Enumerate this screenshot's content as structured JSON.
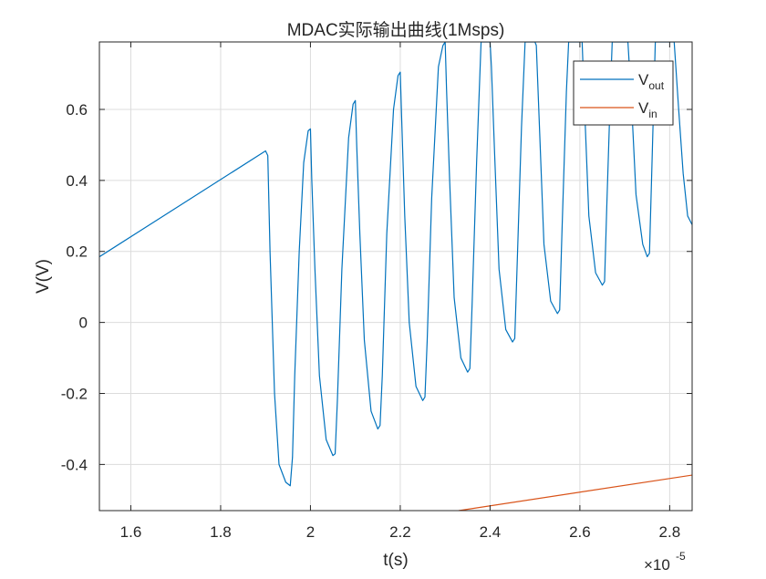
{
  "chart_data": {
    "type": "line",
    "title": "MDAC实际输出曲线(1Msps)",
    "xlabel": "t(s)",
    "ylabel": "V(V)",
    "x_exponent_label": "×10",
    "x_exponent_power": "-5",
    "xlim": [
      1.53,
      2.85
    ],
    "ylim": [
      -0.53,
      0.79
    ],
    "x_ticks": [
      1.6,
      1.8,
      2.0,
      2.2,
      2.4,
      2.6,
      2.8
    ],
    "x_tick_labels": [
      "1.6",
      "1.8",
      "2",
      "2.2",
      "2.4",
      "2.6",
      "2.8"
    ],
    "y_ticks": [
      -0.4,
      -0.2,
      0,
      0.2,
      0.4,
      0.6
    ],
    "y_tick_labels": [
      "-0.4",
      "-0.2",
      "0",
      "0.2",
      "0.4",
      "0.6"
    ],
    "grid": true,
    "legend_position": "top-right",
    "series": [
      {
        "name": "V_out",
        "legend_main": "V",
        "legend_sub": "out",
        "color": "#0072BD",
        "points": [
          [
            1.53,
            0.185
          ],
          [
            1.9,
            0.483
          ],
          [
            1.905,
            0.47
          ],
          [
            1.91,
            0.2
          ],
          [
            1.92,
            -0.2
          ],
          [
            1.93,
            -0.4
          ],
          [
            1.945,
            -0.45
          ],
          [
            1.955,
            -0.46
          ],
          [
            1.96,
            -0.38
          ],
          [
            1.965,
            -0.15
          ],
          [
            1.975,
            0.2
          ],
          [
            1.985,
            0.45
          ],
          [
            1.995,
            0.54
          ],
          [
            2.0,
            0.545
          ],
          [
            2.003,
            0.4
          ],
          [
            2.01,
            0.15
          ],
          [
            2.02,
            -0.15
          ],
          [
            2.035,
            -0.33
          ],
          [
            2.05,
            -0.375
          ],
          [
            2.055,
            -0.37
          ],
          [
            2.06,
            -0.22
          ],
          [
            2.07,
            0.15
          ],
          [
            2.085,
            0.52
          ],
          [
            2.095,
            0.615
          ],
          [
            2.1,
            0.625
          ],
          [
            2.103,
            0.5
          ],
          [
            2.11,
            0.25
          ],
          [
            2.12,
            -0.05
          ],
          [
            2.135,
            -0.25
          ],
          [
            2.15,
            -0.3
          ],
          [
            2.155,
            -0.29
          ],
          [
            2.16,
            -0.15
          ],
          [
            2.17,
            0.25
          ],
          [
            2.185,
            0.6
          ],
          [
            2.195,
            0.695
          ],
          [
            2.2,
            0.705
          ],
          [
            2.203,
            0.58
          ],
          [
            2.21,
            0.3
          ],
          [
            2.22,
            0.0
          ],
          [
            2.235,
            -0.18
          ],
          [
            2.25,
            -0.22
          ],
          [
            2.255,
            -0.21
          ],
          [
            2.26,
            -0.05
          ],
          [
            2.27,
            0.35
          ],
          [
            2.285,
            0.72
          ],
          [
            2.295,
            0.78
          ],
          [
            2.3,
            0.79
          ],
          [
            2.303,
            0.66
          ],
          [
            2.31,
            0.4
          ],
          [
            2.32,
            0.07
          ],
          [
            2.335,
            -0.1
          ],
          [
            2.35,
            -0.14
          ],
          [
            2.355,
            -0.13
          ],
          [
            2.36,
            0.05
          ],
          [
            2.37,
            0.45
          ],
          [
            2.38,
            0.79
          ],
          [
            2.4,
            0.79
          ],
          [
            2.403,
            0.72
          ],
          [
            2.41,
            0.48
          ],
          [
            2.42,
            0.15
          ],
          [
            2.435,
            -0.02
          ],
          [
            2.45,
            -0.055
          ],
          [
            2.455,
            -0.045
          ],
          [
            2.46,
            0.15
          ],
          [
            2.47,
            0.55
          ],
          [
            2.478,
            0.79
          ],
          [
            2.5,
            0.79
          ],
          [
            2.503,
            0.78
          ],
          [
            2.51,
            0.55
          ],
          [
            2.52,
            0.22
          ],
          [
            2.535,
            0.06
          ],
          [
            2.55,
            0.025
          ],
          [
            2.555,
            0.035
          ],
          [
            2.56,
            0.25
          ],
          [
            2.57,
            0.65
          ],
          [
            2.575,
            0.79
          ],
          [
            2.6,
            0.79
          ],
          [
            2.605,
            0.79
          ],
          [
            2.61,
            0.62
          ],
          [
            2.62,
            0.3
          ],
          [
            2.635,
            0.14
          ],
          [
            2.65,
            0.105
          ],
          [
            2.655,
            0.115
          ],
          [
            2.66,
            0.33
          ],
          [
            2.668,
            0.65
          ],
          [
            2.672,
            0.79
          ],
          [
            2.7,
            0.79
          ],
          [
            2.707,
            0.79
          ],
          [
            2.715,
            0.62
          ],
          [
            2.725,
            0.36
          ],
          [
            2.74,
            0.22
          ],
          [
            2.75,
            0.185
          ],
          [
            2.755,
            0.195
          ],
          [
            2.76,
            0.42
          ],
          [
            2.768,
            0.79
          ],
          [
            2.8,
            0.79
          ],
          [
            2.81,
            0.79
          ],
          [
            2.82,
            0.6
          ],
          [
            2.83,
            0.42
          ],
          [
            2.84,
            0.3
          ],
          [
            2.85,
            0.275
          ]
        ]
      },
      {
        "name": "V_in",
        "legend_main": "V",
        "legend_sub": "in",
        "color": "#D95319",
        "points": [
          [
            2.33,
            -0.53
          ],
          [
            2.85,
            -0.43
          ]
        ]
      }
    ]
  }
}
